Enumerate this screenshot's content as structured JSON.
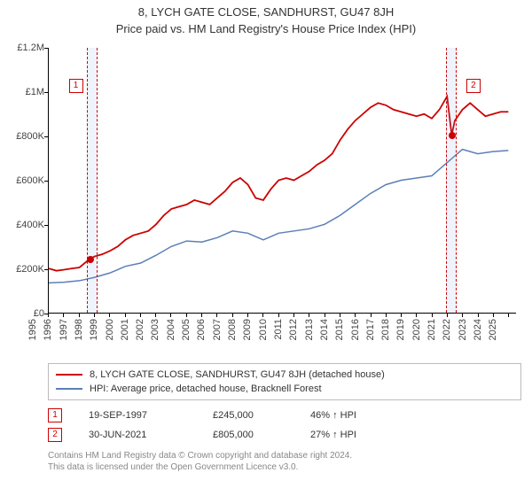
{
  "title": "8, LYCH GATE CLOSE, SANDHURST, GU47 8JH",
  "subtitle": "Price paid vs. HM Land Registry's House Price Index (HPI)",
  "chart": {
    "type": "line",
    "ylim": [
      0,
      1200000
    ],
    "ytick_step": 200000,
    "ytick_labels": [
      "£0",
      "£200K",
      "£400K",
      "£600K",
      "£800K",
      "£1M",
      "£1.2M"
    ],
    "xlim": [
      1995,
      2025.5
    ],
    "x_ticks": [
      1995,
      1996,
      1997,
      1998,
      1999,
      2000,
      2001,
      2002,
      2003,
      2004,
      2005,
      2006,
      2007,
      2008,
      2009,
      2010,
      2011,
      2012,
      2013,
      2014,
      2015,
      2016,
      2017,
      2018,
      2019,
      2020,
      2021,
      2022,
      2023,
      2024,
      2025
    ],
    "background_color": "#ffffff",
    "axis_color": "#000000",
    "tick_fontsize": 11,
    "series": [
      {
        "name": "property",
        "label": "8, LYCH GATE CLOSE, SANDHURST, GU47 8JH (detached house)",
        "color": "#cc0000",
        "line_width": 1.8,
        "data": [
          [
            1995,
            200000
          ],
          [
            1995.5,
            190000
          ],
          [
            1996,
            195000
          ],
          [
            1996.5,
            200000
          ],
          [
            1997,
            205000
          ],
          [
            1997.7,
            245000
          ],
          [
            1998,
            255000
          ],
          [
            1998.5,
            265000
          ],
          [
            1999,
            280000
          ],
          [
            1999.5,
            300000
          ],
          [
            2000,
            330000
          ],
          [
            2000.5,
            350000
          ],
          [
            2001,
            360000
          ],
          [
            2001.5,
            370000
          ],
          [
            2002,
            400000
          ],
          [
            2002.5,
            440000
          ],
          [
            2003,
            470000
          ],
          [
            2003.5,
            480000
          ],
          [
            2004,
            490000
          ],
          [
            2004.5,
            510000
          ],
          [
            2005,
            500000
          ],
          [
            2005.5,
            490000
          ],
          [
            2006,
            520000
          ],
          [
            2006.5,
            550000
          ],
          [
            2007,
            590000
          ],
          [
            2007.5,
            610000
          ],
          [
            2008,
            580000
          ],
          [
            2008.5,
            520000
          ],
          [
            2009,
            510000
          ],
          [
            2009.5,
            560000
          ],
          [
            2010,
            600000
          ],
          [
            2010.5,
            610000
          ],
          [
            2011,
            600000
          ],
          [
            2011.5,
            620000
          ],
          [
            2012,
            640000
          ],
          [
            2012.5,
            670000
          ],
          [
            2013,
            690000
          ],
          [
            2013.5,
            720000
          ],
          [
            2014,
            780000
          ],
          [
            2014.5,
            830000
          ],
          [
            2015,
            870000
          ],
          [
            2015.5,
            900000
          ],
          [
            2016,
            930000
          ],
          [
            2016.5,
            950000
          ],
          [
            2017,
            940000
          ],
          [
            2017.5,
            920000
          ],
          [
            2018,
            910000
          ],
          [
            2018.5,
            900000
          ],
          [
            2019,
            890000
          ],
          [
            2019.5,
            900000
          ],
          [
            2020,
            880000
          ],
          [
            2020.5,
            920000
          ],
          [
            2021,
            980000
          ],
          [
            2021.3,
            805000
          ],
          [
            2021.5,
            870000
          ],
          [
            2022,
            920000
          ],
          [
            2022.5,
            950000
          ],
          [
            2023,
            920000
          ],
          [
            2023.5,
            890000
          ],
          [
            2024,
            900000
          ],
          [
            2024.5,
            910000
          ],
          [
            2025,
            910000
          ]
        ]
      },
      {
        "name": "hpi",
        "label": "HPI: Average price, detached house, Bracknell Forest",
        "color": "#5b7fb8",
        "line_width": 1.5,
        "data": [
          [
            1995,
            135000
          ],
          [
            1996,
            138000
          ],
          [
            1997,
            145000
          ],
          [
            1998,
            160000
          ],
          [
            1999,
            180000
          ],
          [
            2000,
            210000
          ],
          [
            2001,
            225000
          ],
          [
            2002,
            260000
          ],
          [
            2003,
            300000
          ],
          [
            2004,
            325000
          ],
          [
            2005,
            320000
          ],
          [
            2006,
            340000
          ],
          [
            2007,
            370000
          ],
          [
            2008,
            360000
          ],
          [
            2009,
            330000
          ],
          [
            2010,
            360000
          ],
          [
            2011,
            370000
          ],
          [
            2012,
            380000
          ],
          [
            2013,
            400000
          ],
          [
            2014,
            440000
          ],
          [
            2015,
            490000
          ],
          [
            2016,
            540000
          ],
          [
            2017,
            580000
          ],
          [
            2018,
            600000
          ],
          [
            2019,
            610000
          ],
          [
            2020,
            620000
          ],
          [
            2021,
            680000
          ],
          [
            2022,
            740000
          ],
          [
            2023,
            720000
          ],
          [
            2024,
            730000
          ],
          [
            2025,
            735000
          ]
        ]
      }
    ],
    "highlights": [
      {
        "x_start": 1997.5,
        "x_end": 1998.1,
        "band_color": "rgba(120,160,220,0.12)",
        "dash_color": "#cc0000"
      },
      {
        "x_start": 2020.9,
        "x_end": 2021.5,
        "band_color": "rgba(120,160,220,0.12)",
        "dash_color": "#cc0000"
      }
    ],
    "markers": [
      {
        "n": "1",
        "x": 1997.72,
        "y": 245000,
        "box_x": 1996.3,
        "box_y": 1060000,
        "color": "#cc0000"
      },
      {
        "n": "2",
        "x": 2021.3,
        "y": 805000,
        "box_x": 2022.2,
        "box_y": 1060000,
        "color": "#cc0000"
      }
    ]
  },
  "legend": [
    {
      "color": "#cc0000",
      "label": "8, LYCH GATE CLOSE, SANDHURST, GU47 8JH (detached house)"
    },
    {
      "color": "#5b7fb8",
      "label": "HPI: Average price, detached house, Bracknell Forest"
    }
  ],
  "events": [
    {
      "n": "1",
      "color": "#cc0000",
      "date": "19-SEP-1997",
      "price": "£245,000",
      "delta": "46% ↑ HPI"
    },
    {
      "n": "2",
      "color": "#cc0000",
      "date": "30-JUN-2021",
      "price": "£805,000",
      "delta": "27% ↑ HPI"
    }
  ],
  "footer_lines": [
    "Contains HM Land Registry data © Crown copyright and database right 2024.",
    "This data is licensed under the Open Government Licence v3.0."
  ]
}
